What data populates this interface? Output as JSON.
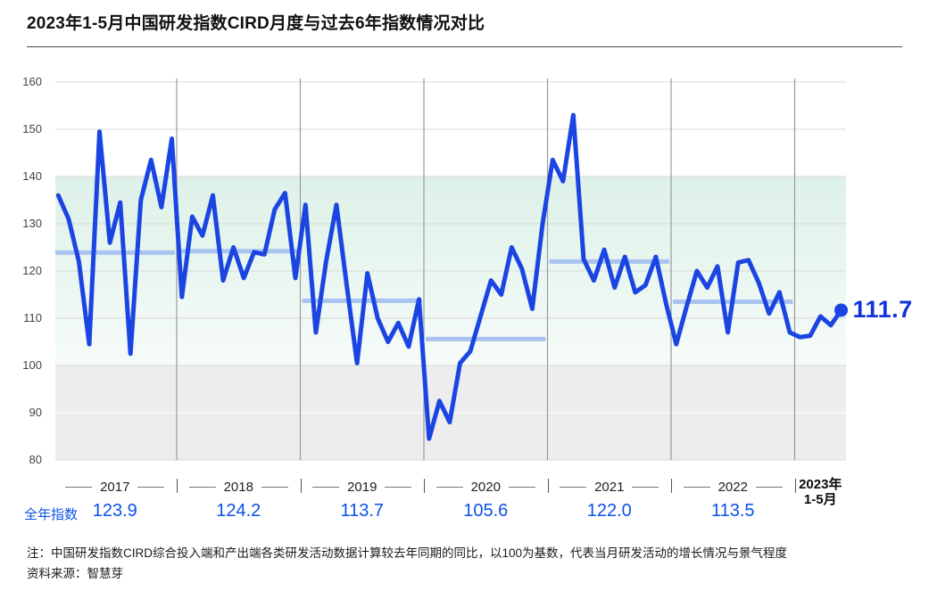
{
  "page": {
    "title": "2023年1-5月中国研发指数CIRD月度与过去6年指数情况对比",
    "note": "注：中国研发指数CIRD综合投入端和产出端各类研发活动数据计算较去年同期的同比，以100为基数，代表当月研发活动的增长情况与景气程度",
    "source": "资料来源：智慧芽"
  },
  "axis": {
    "annual_index_label": "全年指数",
    "yticks": [
      160,
      150,
      140,
      130,
      120,
      110,
      100,
      90,
      80
    ]
  },
  "annotation": {
    "latest_value_label": "111.7"
  },
  "chart_data": {
    "type": "line",
    "title": "2023年1-5月中国研发指数CIRD月度与过去6年指数情况对比",
    "ylabel": "",
    "xlabel": "",
    "ylim": [
      80,
      160
    ],
    "grid": true,
    "legend_position": "none",
    "green_band_range": [
      100,
      140
    ],
    "gray_band_range": [
      80,
      100
    ],
    "years": [
      {
        "label": "2017",
        "annual_index_display": "123.9",
        "annual_index": 123.9,
        "monthly": [
          136,
          131,
          122,
          104.5,
          149.5,
          126,
          134.5,
          102.5,
          135,
          143.5,
          133.5,
          148
        ]
      },
      {
        "label": "2018",
        "annual_index_display": "124.2",
        "annual_index": 124.2,
        "monthly": [
          114.5,
          131.5,
          127.5,
          136,
          118,
          125,
          118.5,
          124,
          123.5,
          133,
          136.5,
          118.5
        ]
      },
      {
        "label": "2019",
        "annual_index_display": "113.7",
        "annual_index": 113.7,
        "monthly": [
          134,
          107,
          122,
          134,
          117,
          100.5,
          119.5,
          110,
          105,
          109,
          104,
          114
        ]
      },
      {
        "label": "2020",
        "annual_index_display": "105.6",
        "annual_index": 105.6,
        "monthly": [
          84.5,
          92.5,
          88,
          100.5,
          103,
          110.5,
          118,
          115,
          125,
          120.5,
          112,
          130
        ]
      },
      {
        "label": "2021",
        "annual_index_display": "122.0",
        "annual_index": 122.0,
        "monthly": [
          143.5,
          139,
          153,
          122.5,
          118,
          124.5,
          116.5,
          123,
          115.5,
          117,
          123,
          113
        ]
      },
      {
        "label": "2022",
        "annual_index_display": "113.5",
        "annual_index": 113.5,
        "monthly": [
          104.5,
          112.5,
          120,
          116.5,
          121,
          107,
          121.8,
          122.3,
          117.5,
          111,
          115.5,
          107
        ]
      },
      {
        "label": "2023年",
        "sublabel": "1-5月",
        "annual_index_display": null,
        "monthly": [
          106,
          106.3,
          110.4,
          108.5,
          111.7
        ],
        "latest_value": 111.7
      }
    ]
  },
  "colors": {
    "line": "#1b45e2",
    "dot": "#1b45e2",
    "latest_text": "#1133d9",
    "annual_text": "#0b51e8",
    "avg_bar": "#a9c4f0",
    "band_green_top": "#ddf1e8",
    "band_green_bottom": "#f6fbf9",
    "band_gray": "#ededed",
    "gridline": "#d9d9d9",
    "gridline_on_gray": "#ffffff",
    "divider": "#9a9a9a"
  }
}
